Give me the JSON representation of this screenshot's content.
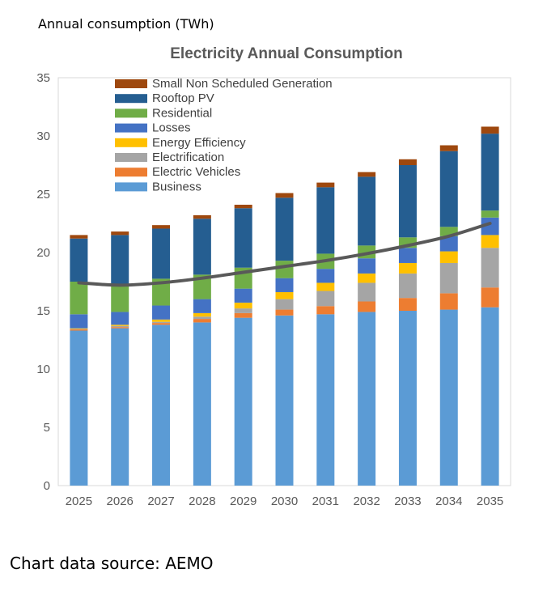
{
  "header": {
    "unit_caption": "Annual consumption (TWh)"
  },
  "footer": {
    "source": "Chart data source: AEMO"
  },
  "chart_data": {
    "type": "bar",
    "stacked": true,
    "title": "Electricity Annual Consumption",
    "xlabel": "",
    "ylabel": "",
    "ylim": [
      0,
      35
    ],
    "yticks": [
      0,
      5,
      10,
      15,
      20,
      25,
      30,
      35
    ],
    "grid": false,
    "legend_position": "top-left",
    "categories": [
      "2025",
      "2026",
      "2027",
      "2028",
      "2029",
      "2030",
      "2031",
      "2032",
      "2033",
      "2034",
      "2035"
    ],
    "series": [
      {
        "name": "Business",
        "color": "#5B9BD5",
        "values": [
          13.3,
          13.5,
          13.8,
          14.0,
          14.4,
          14.6,
          14.7,
          14.9,
          15.0,
          15.1,
          15.3
        ]
      },
      {
        "name": "Electric Vehicles",
        "color": "#ED7D31",
        "values": [
          0.1,
          0.1,
          0.15,
          0.3,
          0.4,
          0.5,
          0.7,
          0.9,
          1.1,
          1.4,
          1.7
        ]
      },
      {
        "name": "Electrification",
        "color": "#A5A5A5",
        "values": [
          0.05,
          0.1,
          0.1,
          0.2,
          0.4,
          0.9,
          1.3,
          1.6,
          2.1,
          2.6,
          3.4
        ]
      },
      {
        "name": "Energy Efficiency",
        "color": "#FFC000",
        "values": [
          0.05,
          0.1,
          0.2,
          0.3,
          0.5,
          0.6,
          0.7,
          0.8,
          0.9,
          1.0,
          1.1
        ]
      },
      {
        "name": "Losses",
        "color": "#4472C4",
        "values": [
          1.2,
          1.1,
          1.2,
          1.2,
          1.2,
          1.2,
          1.2,
          1.3,
          1.3,
          1.3,
          1.5
        ]
      },
      {
        "name": "Residential",
        "color": "#70AD47",
        "values": [
          2.8,
          2.4,
          2.3,
          2.1,
          1.8,
          1.5,
          1.3,
          1.1,
          0.9,
          0.8,
          0.6
        ]
      },
      {
        "name": "Rooftop PV",
        "color": "#255E91",
        "values": [
          3.7,
          4.2,
          4.3,
          4.8,
          5.1,
          5.4,
          5.7,
          5.9,
          6.2,
          6.5,
          6.6
        ]
      },
      {
        "name": "Small Non Scheduled Generation",
        "color": "#9E480E",
        "values": [
          0.3,
          0.3,
          0.3,
          0.3,
          0.3,
          0.4,
          0.4,
          0.4,
          0.5,
          0.5,
          0.6
        ]
      }
    ],
    "trend_line": {
      "color": "#595959",
      "values": [
        17.4,
        17.2,
        17.4,
        17.8,
        18.3,
        18.8,
        19.3,
        19.9,
        20.6,
        21.4,
        22.5
      ]
    }
  }
}
